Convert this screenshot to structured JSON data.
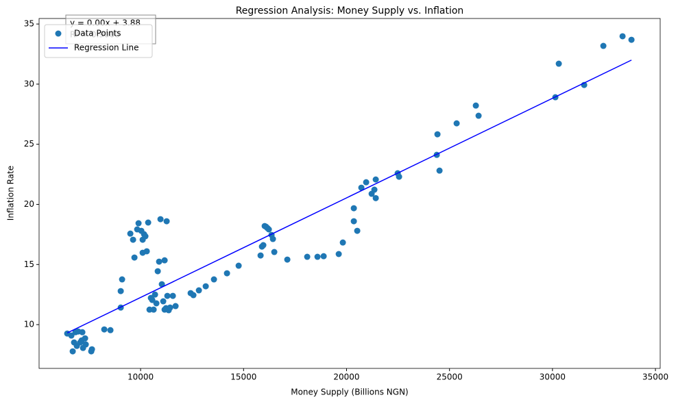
{
  "chart_data": {
    "type": "scatter",
    "title": "Regression Analysis: Money Supply vs. Inflation",
    "x_label": "Money Supply (Billions NGN)",
    "y_label": "Inflation Rate",
    "annotations": [
      "y = 0.00x + 3.88",
      "R² = 0.9000"
    ],
    "xlim": [
      5070,
      35230
    ],
    "ylim": [
      6.36,
      35.46
    ],
    "xticks": [
      10000,
      15000,
      20000,
      25000,
      30000,
      35000
    ],
    "yticks": [
      10,
      15,
      20,
      25,
      30,
      35
    ],
    "legend": "upper left",
    "series": [
      {
        "name": "Data Points",
        "type": "scatter",
        "color": "#1f77b4",
        "x": [
          6438,
          6638,
          6704,
          6771,
          6838,
          6904,
          6971,
          7071,
          7137,
          7171,
          7204,
          7304,
          7337,
          7604,
          7637,
          8236,
          8535,
          9035,
          9101,
          9035,
          9501,
          9634,
          9701,
          9834,
          9900,
          10034,
          10100,
          10167,
          10233,
          10300,
          10367,
          10100,
          10433,
          10500,
          10566,
          10633,
          10700,
          10766,
          10833,
          10899,
          10966,
          11032,
          11099,
          11166,
          11232,
          11299,
          11365,
          11432,
          11565,
          11698,
          11166,
          11265,
          12431,
          12564,
          12830,
          13163,
          13562,
          14195,
          14761,
          15826,
          15893,
          15959,
          16026,
          16093,
          16159,
          16226,
          16359,
          16425,
          16492,
          17124,
          18090,
          18589,
          18889,
          19621,
          19821,
          20354,
          20354,
          20520,
          20720,
          20953,
          21219,
          21352,
          21419,
          21419,
          22484,
          22551,
          24382,
          24415,
          24515,
          25347,
          26279,
          26412,
          30141,
          30307,
          31539,
          32471,
          33403,
          33836
        ],
        "values": [
          9.26,
          9.09,
          7.78,
          8.52,
          9.37,
          8.23,
          9.43,
          8.52,
          8.69,
          9.37,
          8.06,
          8.86,
          8.35,
          7.78,
          7.95,
          9.6,
          9.54,
          11.42,
          13.76,
          12.79,
          17.57,
          17.06,
          15.58,
          17.92,
          18.43,
          17.8,
          17.06,
          17.52,
          17.35,
          16.1,
          18.49,
          15.98,
          11.25,
          12.22,
          12.05,
          11.25,
          12.5,
          11.77,
          14.44,
          15.24,
          18.77,
          13.36,
          11.94,
          11.25,
          11.37,
          12.39,
          11.2,
          11.42,
          12.39,
          11.54,
          15.35,
          18.6,
          12.62,
          12.45,
          12.85,
          13.19,
          13.76,
          14.27,
          14.9,
          15.75,
          16.49,
          16.61,
          18.2,
          18.14,
          18.03,
          17.92,
          17.46,
          17.12,
          16.04,
          15.41,
          15.64,
          15.64,
          15.69,
          15.87,
          16.83,
          18.6,
          19.68,
          17.8,
          21.39,
          21.84,
          20.88,
          21.22,
          22.07,
          20.52,
          22.59,
          22.3,
          24.12,
          25.83,
          22.81,
          26.74,
          28.22,
          27.37,
          28.91,
          31.7,
          29.93,
          33.18,
          33.98,
          33.69
        ]
      },
      {
        "name": "Regression Line",
        "type": "line",
        "color": "#0000ff",
        "x": [
          6438,
          33836
        ],
        "values": [
          9.31,
          32.0
        ]
      }
    ]
  }
}
